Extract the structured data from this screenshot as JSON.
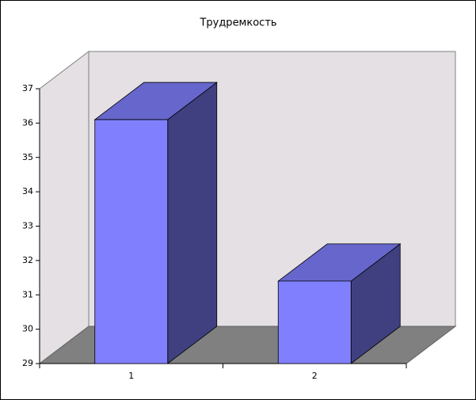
{
  "chart_data": {
    "type": "bar",
    "title": "Трудремкость",
    "categories": [
      "1",
      "2"
    ],
    "values": [
      36.1,
      31.4
    ],
    "color": "#8080ff",
    "ylim": [
      29,
      37
    ],
    "yticks": [
      29,
      30,
      31,
      32,
      33,
      34,
      35,
      36,
      37
    ]
  }
}
